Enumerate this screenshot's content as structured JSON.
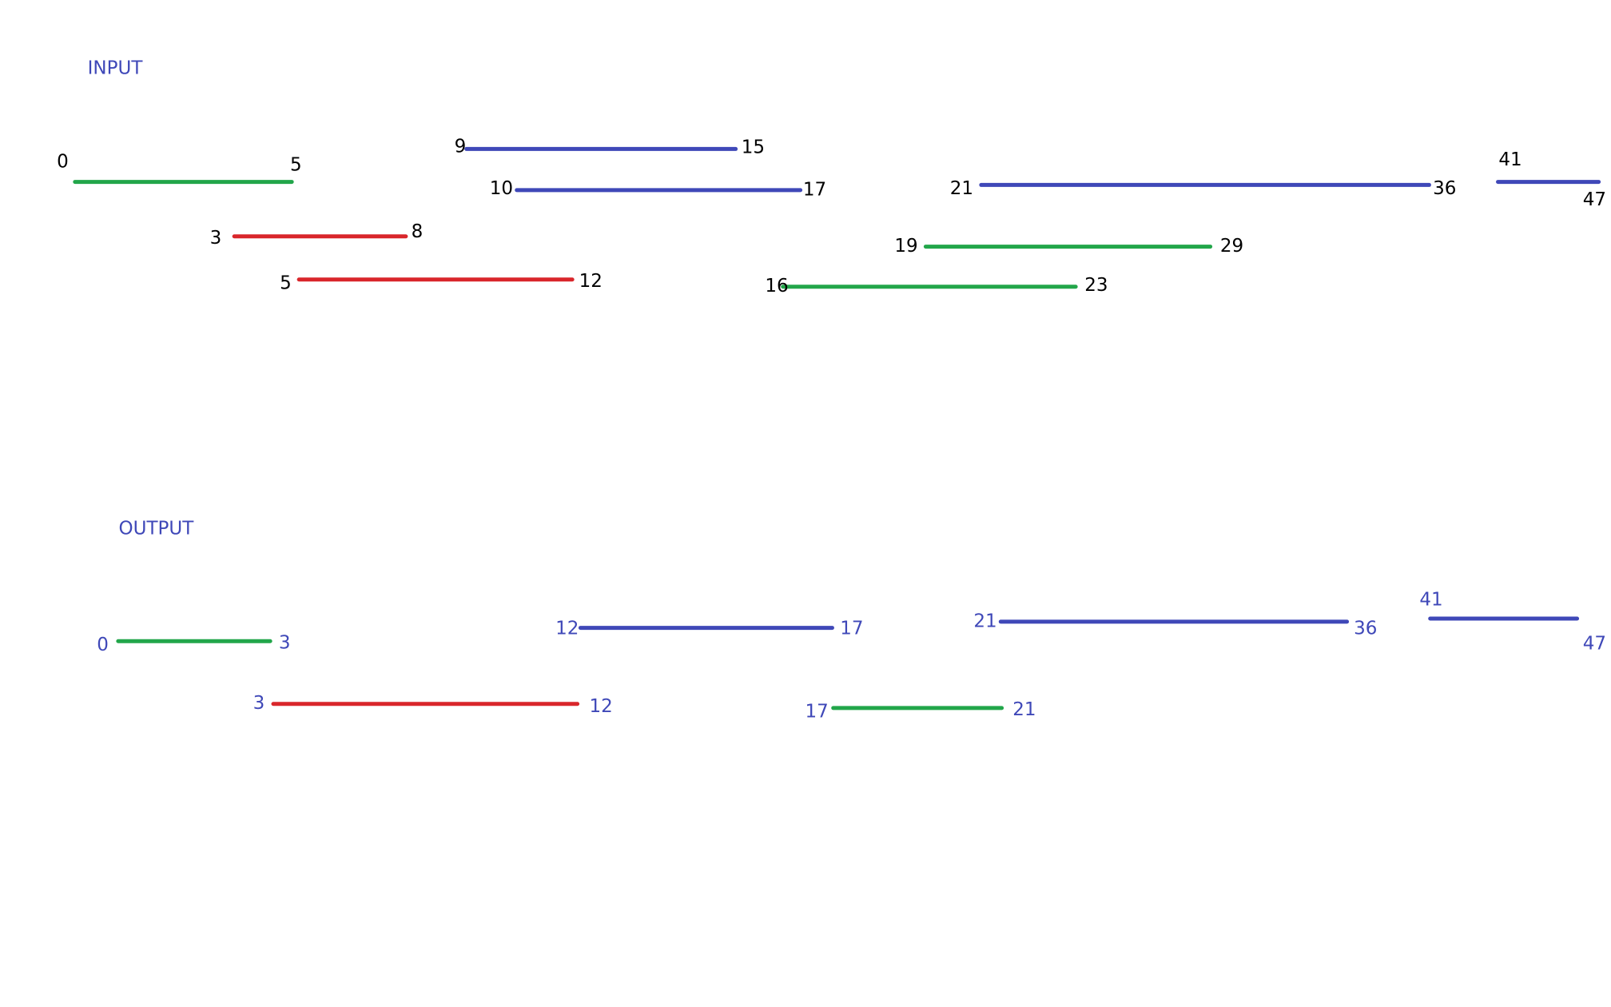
{
  "input": {
    "title": "INPUT",
    "title_color": "#3f48b8",
    "label_color": "#000000",
    "segments": [
      {
        "start": 0,
        "end": 5,
        "color": "#22a64a"
      },
      {
        "start": 3,
        "end": 8,
        "color": "#d9262b"
      },
      {
        "start": 5,
        "end": 12,
        "color": "#d9262b"
      },
      {
        "start": 9,
        "end": 15,
        "color": "#3f48b8"
      },
      {
        "start": 10,
        "end": 17,
        "color": "#3f48b8"
      },
      {
        "start": 16,
        "end": 23,
        "color": "#22a64a"
      },
      {
        "start": 19,
        "end": 29,
        "color": "#22a64a"
      },
      {
        "start": 21,
        "end": 36,
        "color": "#3f48b8"
      },
      {
        "start": 41,
        "end": 47,
        "color": "#3f48b8"
      }
    ]
  },
  "output": {
    "title": "OUTPUT",
    "title_color": "#3f48b8",
    "label_color": "#3f48b8",
    "segments": [
      {
        "start": 0,
        "end": 3,
        "color": "#22a64a"
      },
      {
        "start": 3,
        "end": 12,
        "color": "#d9262b"
      },
      {
        "start": 12,
        "end": 17,
        "color": "#3f48b8"
      },
      {
        "start": 17,
        "end": 21,
        "color": "#22a64a"
      },
      {
        "start": 21,
        "end": 36,
        "color": "#3f48b8"
      },
      {
        "start": 41,
        "end": 47,
        "color": "#3f48b8"
      }
    ]
  }
}
